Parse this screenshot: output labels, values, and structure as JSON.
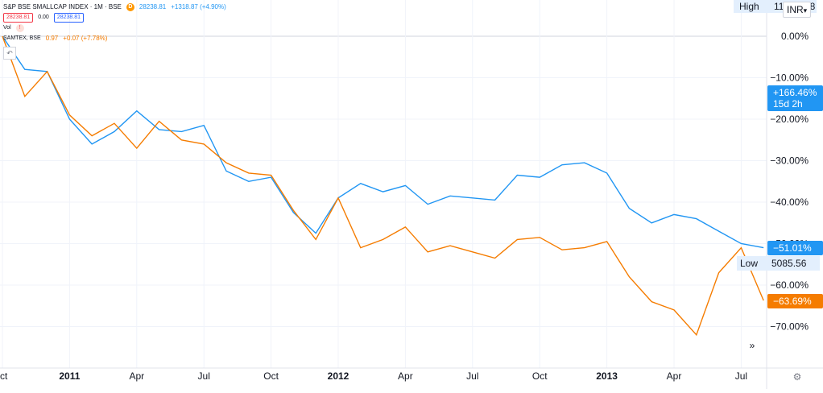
{
  "legend": {
    "main_title": "S&P BSE SMALLCAP INDEX · 1M · BSE",
    "main_price": "28238.81",
    "main_change": "+1318.87 (+4.90%)",
    "sell_price": "28238.81",
    "spread": "0.00",
    "buy_price": "28238.81",
    "vol_label": "Vol",
    "compare_title": "SAMTEX, BSE",
    "compare_price": "0.97",
    "compare_change": "+0.07 (+7.78%)",
    "delayed_badge": "D",
    "warning_badge": "!"
  },
  "scale_currency": "INR",
  "high_label": "High",
  "high_value_partial": "11",
  "high_value_tail": "58",
  "low_label": "Low",
  "low_value": "5085.56",
  "nav_icon_glyph": "»",
  "settings_icon_glyph": "⚙",
  "undo_icon_glyph": "↶",
  "badges": {
    "main_pct": "+166.46%",
    "main_countdown": "15d 2h",
    "blue_pct": "−51.01%",
    "orange_pct": "−63.69%"
  },
  "colors": {
    "blue": "#2196f3",
    "orange": "#f57c00",
    "grid": "#f0f3fa"
  },
  "chart_data": {
    "type": "line",
    "y_unit": "percent change",
    "ylim": [
      -80,
      0
    ],
    "y_ticks": [
      0,
      -10,
      -20,
      -30,
      -40,
      -50,
      -60,
      -70
    ],
    "y_tick_labels": [
      "0.00%",
      "−10.00%",
      "−20.00%",
      "−30.00%",
      "−40.00%",
      "−50.00%",
      "−60.00%",
      "−70.00%"
    ],
    "x_ticks": [
      {
        "month": 0,
        "label": "ct",
        "bold": false
      },
      {
        "month": 3,
        "label": "2011",
        "bold": true
      },
      {
        "month": 6,
        "label": "Apr",
        "bold": false
      },
      {
        "month": 9,
        "label": "Jul",
        "bold": false
      },
      {
        "month": 12,
        "label": "Oct",
        "bold": false
      },
      {
        "month": 15,
        "label": "2012",
        "bold": true
      },
      {
        "month": 18,
        "label": "Apr",
        "bold": false
      },
      {
        "month": 21,
        "label": "Jul",
        "bold": false
      },
      {
        "month": 24,
        "label": "Oct",
        "bold": false
      },
      {
        "month": 27,
        "label": "2013",
        "bold": true
      },
      {
        "month": 30,
        "label": "Apr",
        "bold": false
      },
      {
        "month": 33,
        "label": "Jul",
        "bold": false
      }
    ],
    "xlim": [
      0,
      34
    ],
    "series": [
      {
        "color": "#2196f3",
        "values": [
          [
            0,
            0
          ],
          [
            1,
            -8
          ],
          [
            2,
            -8.5
          ],
          [
            3,
            -20
          ],
          [
            4,
            -26
          ],
          [
            5,
            -23
          ],
          [
            6,
            -18
          ],
          [
            7,
            -22.5
          ],
          [
            8,
            -23
          ],
          [
            9,
            -21.5
          ],
          [
            10,
            -32.5
          ],
          [
            11,
            -35
          ],
          [
            12,
            -34
          ],
          [
            13,
            -42.5
          ],
          [
            14,
            -47.5
          ],
          [
            15,
            -39
          ],
          [
            16,
            -35.5
          ],
          [
            17,
            -37.5
          ],
          [
            18,
            -36
          ],
          [
            19,
            -40.5
          ],
          [
            20,
            -38.5
          ],
          [
            21,
            -39
          ],
          [
            22,
            -39.5
          ],
          [
            23,
            -33.5
          ],
          [
            24,
            -34
          ],
          [
            25,
            -31
          ],
          [
            26,
            -30.5
          ],
          [
            27,
            -33
          ],
          [
            28,
            -41.5
          ],
          [
            29,
            -45
          ],
          [
            30,
            -43
          ],
          [
            31,
            -44
          ],
          [
            32,
            -47
          ],
          [
            33,
            -50
          ],
          [
            34,
            -51
          ]
        ]
      },
      {
        "color": "#f57c00",
        "values": [
          [
            0,
            0
          ],
          [
            1,
            -14.5
          ],
          [
            2,
            -8.5
          ],
          [
            3,
            -19
          ],
          [
            4,
            -24
          ],
          [
            5,
            -21
          ],
          [
            6,
            -27
          ],
          [
            7,
            -20.5
          ],
          [
            8,
            -25
          ],
          [
            9,
            -26
          ],
          [
            10,
            -30.5
          ],
          [
            11,
            -33
          ],
          [
            12,
            -33.5
          ],
          [
            13,
            -42
          ],
          [
            14,
            -49
          ],
          [
            15,
            -39
          ],
          [
            16,
            -51
          ],
          [
            17,
            -49
          ],
          [
            18,
            -46
          ],
          [
            19,
            -52
          ],
          [
            20,
            -50.5
          ],
          [
            21,
            -52
          ],
          [
            22,
            -53.5
          ],
          [
            23,
            -49
          ],
          [
            24,
            -48.5
          ],
          [
            25,
            -51.5
          ],
          [
            26,
            -51
          ],
          [
            27,
            -49.5
          ],
          [
            28,
            -58
          ],
          [
            29,
            -64
          ],
          [
            30,
            -66
          ],
          [
            31,
            -72
          ],
          [
            32,
            -57
          ],
          [
            33,
            -51
          ],
          [
            34,
            -63.7
          ]
        ]
      }
    ]
  }
}
